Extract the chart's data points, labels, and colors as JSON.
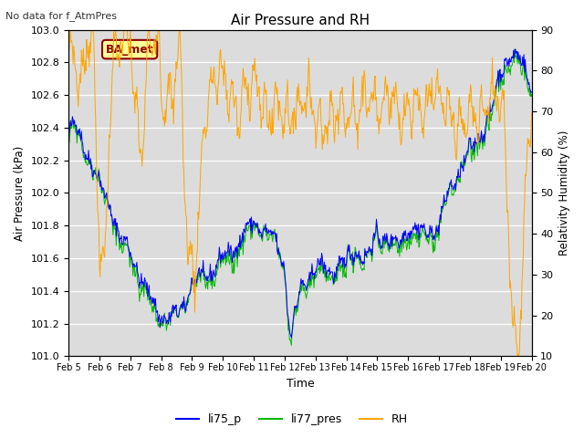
{
  "title": "Air Pressure and RH",
  "subtitle": "No data for f_AtmPres",
  "ylabel_left": "Air Pressure (kPa)",
  "ylabel_right": "Relativity Humidity (%)",
  "xlabel": "Time",
  "ylim_left": [
    101.0,
    103.0
  ],
  "ylim_right": [
    10,
    90
  ],
  "yticks_left": [
    101.0,
    101.2,
    101.4,
    101.6,
    101.8,
    102.0,
    102.2,
    102.4,
    102.6,
    102.8,
    103.0
  ],
  "yticks_right": [
    10,
    20,
    30,
    40,
    50,
    60,
    70,
    80,
    90
  ],
  "xtick_labels": [
    "Feb 5",
    "Feb 6",
    "Feb 7",
    "Feb 8",
    "Feb 9",
    "Feb 10",
    "Feb 11",
    "Feb 12",
    "Feb 13",
    "Feb 14",
    "Feb 15",
    "Feb 16",
    "Feb 17",
    "Feb 18",
    "Feb 19",
    "Feb 20"
  ],
  "color_li75": "#0000ff",
  "color_li77": "#00bb00",
  "color_rh": "#ffa500",
  "bg_color": "#dcdcdc",
  "legend_entries": [
    "li75_p",
    "li77_pres",
    "RH"
  ],
  "ba_met_label": "BA_met",
  "ba_met_color": "#8b0000",
  "ba_met_bg": "#ffff99"
}
